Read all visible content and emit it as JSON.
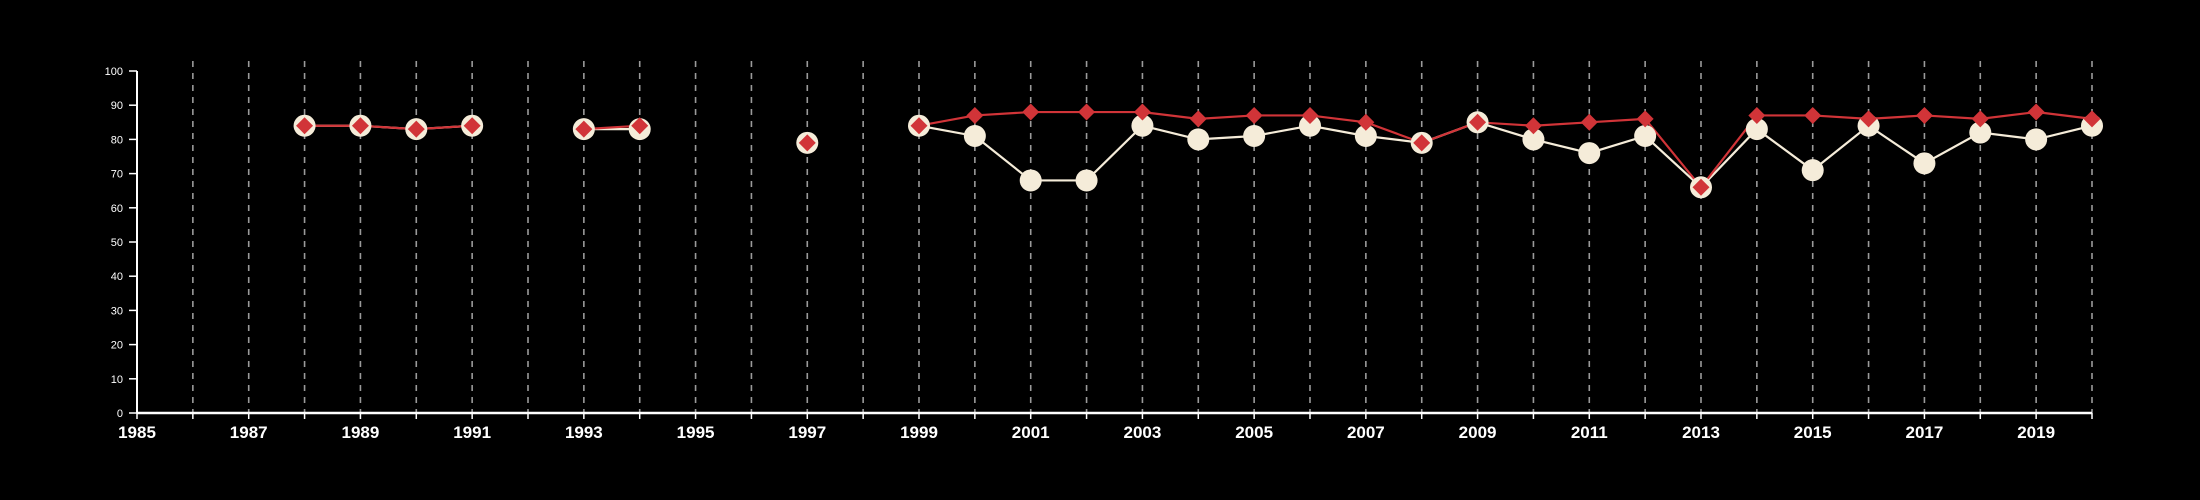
{
  "chart_data": {
    "type": "line",
    "title": "",
    "xlabel": "",
    "ylabel": "",
    "xlim": [
      1985,
      2020
    ],
    "ylim": [
      0,
      100
    ],
    "x_ticks": [
      1985,
      1987,
      1989,
      1991,
      1993,
      1995,
      1997,
      1999,
      2001,
      2003,
      2005,
      2007,
      2009,
      2011,
      2013,
      2015,
      2017,
      2019
    ],
    "y_ticks": [
      0,
      10,
      20,
      30,
      40,
      50,
      60,
      70,
      80,
      90,
      100
    ],
    "grid": "vertical dashed lines at each year",
    "legend": "none",
    "series": [
      {
        "color": "#f5ecd9",
        "marker": "circle",
        "points": [
          {
            "x": 1988,
            "y": 84
          },
          {
            "x": 1989,
            "y": 84
          },
          {
            "x": 1990,
            "y": 83
          },
          {
            "x": 1991,
            "y": 84
          },
          {
            "x": 1993,
            "y": 83
          },
          {
            "x": 1994,
            "y": 83
          },
          {
            "x": 1997,
            "y": 79
          },
          {
            "x": 1999,
            "y": 84
          },
          {
            "x": 2000,
            "y": 81
          },
          {
            "x": 2001,
            "y": 68
          },
          {
            "x": 2002,
            "y": 68
          },
          {
            "x": 2003,
            "y": 84
          },
          {
            "x": 2004,
            "y": 80
          },
          {
            "x": 2005,
            "y": 81
          },
          {
            "x": 2006,
            "y": 84
          },
          {
            "x": 2007,
            "y": 81
          },
          {
            "x": 2008,
            "y": 79
          },
          {
            "x": 2009,
            "y": 85
          },
          {
            "x": 2010,
            "y": 80
          },
          {
            "x": 2011,
            "y": 76
          },
          {
            "x": 2012,
            "y": 81
          },
          {
            "x": 2013,
            "y": 66
          },
          {
            "x": 2014,
            "y": 83
          },
          {
            "x": 2015,
            "y": 71
          },
          {
            "x": 2016,
            "y": 84
          },
          {
            "x": 2017,
            "y": 73
          },
          {
            "x": 2018,
            "y": 82
          },
          {
            "x": 2019,
            "y": 80
          },
          {
            "x": 2020,
            "y": 84
          }
        ]
      },
      {
        "color": "#d13438",
        "marker": "diamond",
        "points": [
          {
            "x": 1988,
            "y": 84
          },
          {
            "x": 1989,
            "y": 84
          },
          {
            "x": 1990,
            "y": 83
          },
          {
            "x": 1991,
            "y": 84
          },
          {
            "x": 1993,
            "y": 83
          },
          {
            "x": 1994,
            "y": 84
          },
          {
            "x": 1997,
            "y": 79
          },
          {
            "x": 1999,
            "y": 84
          },
          {
            "x": 2000,
            "y": 87
          },
          {
            "x": 2001,
            "y": 88
          },
          {
            "x": 2002,
            "y": 88
          },
          {
            "x": 2003,
            "y": 88
          },
          {
            "x": 2004,
            "y": 86
          },
          {
            "x": 2005,
            "y": 87
          },
          {
            "x": 2006,
            "y": 87
          },
          {
            "x": 2007,
            "y": 85
          },
          {
            "x": 2008,
            "y": 79
          },
          {
            "x": 2009,
            "y": 85
          },
          {
            "x": 2010,
            "y": 84
          },
          {
            "x": 2011,
            "y": 85
          },
          {
            "x": 2012,
            "y": 86
          },
          {
            "x": 2013,
            "y": 66
          },
          {
            "x": 2014,
            "y": 87
          },
          {
            "x": 2015,
            "y": 87
          },
          {
            "x": 2016,
            "y": 86
          },
          {
            "x": 2017,
            "y": 87
          },
          {
            "x": 2018,
            "y": 86
          },
          {
            "x": 2019,
            "y": 88
          },
          {
            "x": 2020,
            "y": 86
          }
        ]
      }
    ]
  },
  "colors": {
    "background": "#000000",
    "axis": "#ffffff",
    "grid": "#9a9a9a"
  }
}
